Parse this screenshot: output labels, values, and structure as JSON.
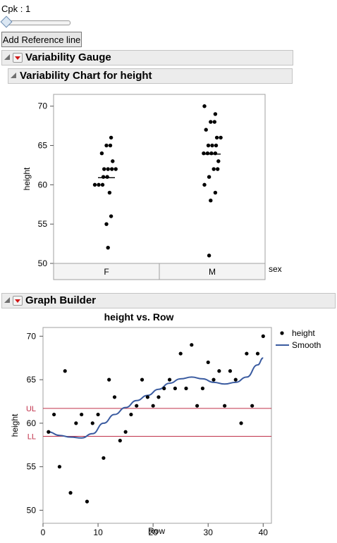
{
  "controls": {
    "cpk_label": "Cpk : 1",
    "slider_fraction": 0.0,
    "reference_button": "Add Reference line"
  },
  "outline": {
    "variability_gauge": "Variability Gauge",
    "variability_chart": "Variability Chart for height",
    "graph_builder": "Graph Builder"
  },
  "colors": {
    "points": "#000000",
    "smooth": "#3a5ba0",
    "reference_lines": "#c0304a",
    "frame": "#a0a0a0"
  },
  "chart_data": [
    {
      "type": "scatter",
      "title": "",
      "xlabel": "sex",
      "ylabel": "height",
      "ylim": [
        50,
        71.5
      ],
      "yticks": [
        50,
        55,
        60,
        65,
        70
      ],
      "categories": [
        "F",
        "M"
      ],
      "groups": [
        {
          "category": "F",
          "mean": 60.9,
          "values": [
            61,
            65,
            63,
            59,
            60,
            62,
            62,
            62,
            61,
            64,
            65,
            66,
            60,
            56,
            55,
            52,
            60,
            62
          ]
        },
        {
          "category": "M",
          "mean": 63.9,
          "values": [
            64,
            65,
            63,
            59,
            60,
            62,
            61,
            64,
            66,
            67,
            68,
            69,
            65,
            62,
            58,
            51,
            68,
            65,
            64,
            70,
            66,
            64
          ]
        }
      ]
    },
    {
      "type": "line",
      "title": "height vs. Row",
      "xlabel": "Row",
      "ylabel": "height",
      "xlim": [
        0,
        41.5
      ],
      "ylim": [
        48.5,
        71
      ],
      "xticks": [
        0,
        10,
        20,
        30,
        40
      ],
      "yticks": [
        50,
        55,
        60,
        65,
        70
      ],
      "legend": {
        "position": "right",
        "entries": [
          "height",
          "Smooth"
        ]
      },
      "reference_lines": [
        {
          "label": "UL",
          "value": 61.7
        },
        {
          "label": "LL",
          "value": 58.5
        }
      ],
      "series": [
        {
          "name": "height",
          "kind": "scatter",
          "x": [
            1,
            2,
            3,
            4,
            5,
            6,
            7,
            8,
            9,
            10,
            11,
            12,
            13,
            14,
            15,
            16,
            17,
            18,
            19,
            20,
            21,
            22,
            23,
            24,
            25,
            26,
            27,
            28,
            29,
            30,
            31,
            32,
            33,
            34,
            35,
            36,
            37,
            38,
            39,
            40
          ],
          "y": [
            59,
            61,
            55,
            66,
            52,
            60,
            61,
            51,
            60,
            61,
            56,
            65,
            63,
            58,
            59,
            61,
            62,
            65,
            63,
            62,
            63,
            64,
            65,
            64,
            68,
            64,
            69,
            62,
            64,
            67,
            65,
            66,
            62,
            66,
            65,
            60,
            68,
            62,
            68,
            70
          ]
        },
        {
          "name": "Smooth",
          "kind": "line",
          "x": [
            1,
            3,
            5,
            7,
            9,
            11,
            13,
            15,
            17,
            19,
            21,
            23,
            25,
            27,
            29,
            31,
            33,
            35,
            37,
            39,
            40
          ],
          "y": [
            59.0,
            58.6,
            58.4,
            58.3,
            58.8,
            60.0,
            61.0,
            61.8,
            62.6,
            63.2,
            63.9,
            64.6,
            65.1,
            65.3,
            65.1,
            64.7,
            64.5,
            64.7,
            65.3,
            66.7,
            67.5
          ]
        }
      ]
    }
  ]
}
